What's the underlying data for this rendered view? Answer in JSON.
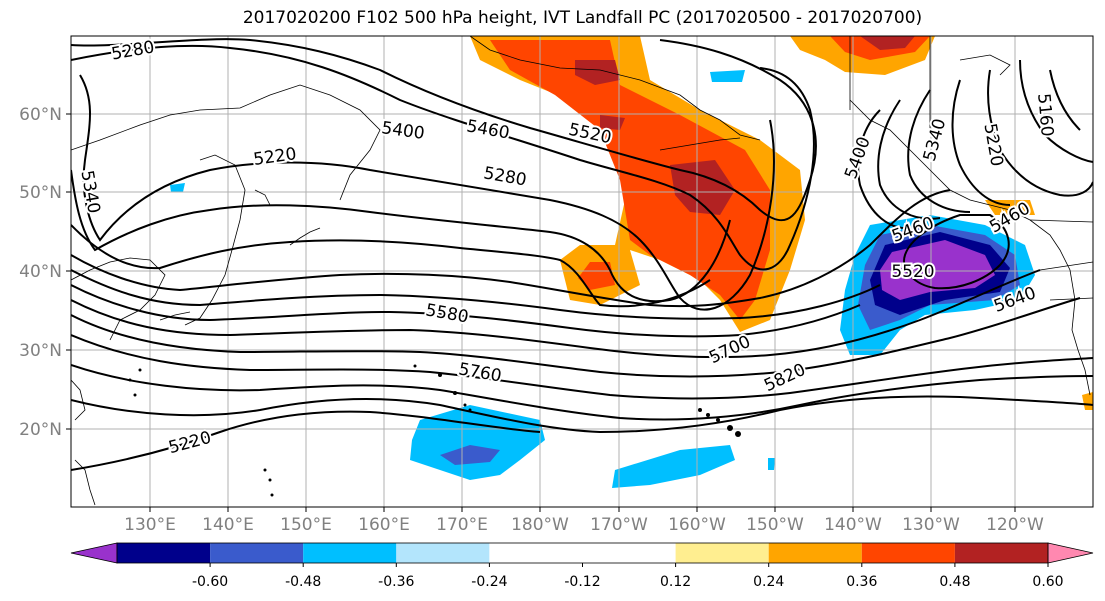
{
  "title": "2017020200 F102 500 hPa height, IVT Landfall PC (2017020500 - 2017020700)",
  "lon_ticks": [
    "130°E",
    "140°E",
    "150°E",
    "160°E",
    "170°E",
    "180°W",
    "170°W",
    "160°W",
    "150°W",
    "140°W",
    "130°W",
    "120°W"
  ],
  "lat_ticks": [
    "20°N",
    "30°N",
    "40°N",
    "50°N",
    "60°N"
  ],
  "colorbar": {
    "colors": [
      "#9932CC",
      "#00008B",
      "#3A5BCC",
      "#00BFFF",
      "#B3E5FC",
      "#FFFFFF",
      "#FFFFFF",
      "#FFEE90",
      "#FFA500",
      "#FF4500",
      "#B22222",
      "#FF88B0"
    ],
    "tick_labels": [
      "-0.60",
      "-0.48",
      "-0.36",
      "-0.24",
      "-0.12",
      "0.12",
      "0.24",
      "0.36",
      "0.48",
      "0.60"
    ]
  },
  "contour_labels": [
    "5280",
    "5400",
    "5460",
    "5520",
    "5220",
    "5280",
    "5340",
    "5400",
    "5460",
    "5520",
    "5580",
    "5700",
    "5760",
    "5820",
    "5220",
    "5340",
    "5640",
    "5160",
    "5220",
    "5460"
  ]
}
